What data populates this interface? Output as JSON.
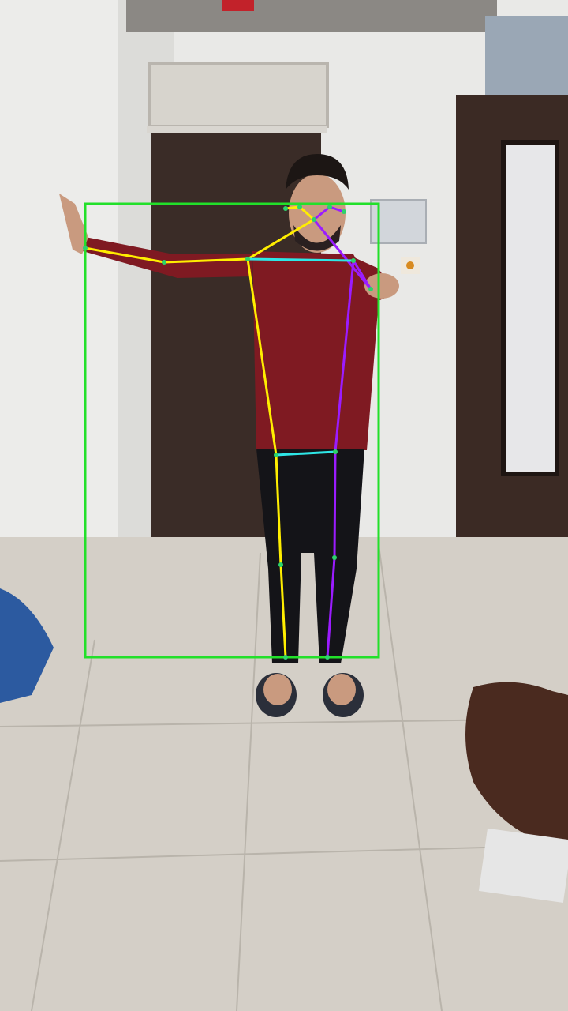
{
  "scene": {
    "description_free": true,
    "colors": {
      "wall": "#e9e9e7",
      "floor": "#d4cfc7",
      "door": "#3a2c27",
      "wardrobe": "#3b2a24",
      "shirt": "#7f1a22",
      "pants": "#141418",
      "skin": "#c99a7f"
    }
  },
  "overlay": {
    "bbox_color": "#22e02a",
    "left_side_color": "#ffee00",
    "right_side_color": "#9b1cff",
    "center_color": "#2ee6e6",
    "keypoint_color": "#2bd36b"
  }
}
